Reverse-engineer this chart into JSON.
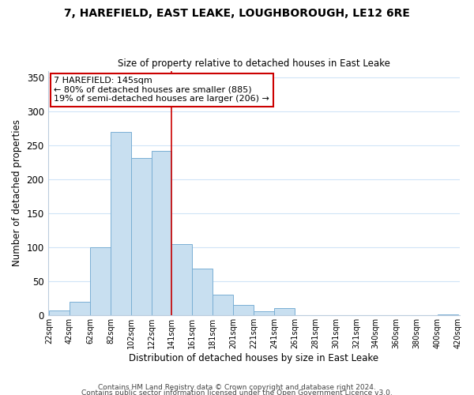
{
  "title1": "7, HAREFIELD, EAST LEAKE, LOUGHBOROUGH, LE12 6RE",
  "title2": "Size of property relative to detached houses in East Leake",
  "xlabel": "Distribution of detached houses by size in East Leake",
  "ylabel": "Number of detached properties",
  "bar_left_edges": [
    22,
    42,
    62,
    82,
    102,
    122,
    141,
    161,
    181,
    201,
    221,
    241,
    261,
    281,
    301,
    321,
    340,
    360,
    380,
    400
  ],
  "bar_widths": [
    20,
    20,
    20,
    20,
    20,
    19,
    20,
    20,
    20,
    20,
    20,
    20,
    20,
    20,
    20,
    19,
    20,
    20,
    20,
    20
  ],
  "bar_heights": [
    7,
    20,
    100,
    270,
    232,
    242,
    105,
    69,
    30,
    16,
    6,
    11,
    0,
    0,
    0,
    0,
    0,
    0,
    0,
    2
  ],
  "bar_color": "#c8dff0",
  "bar_edgecolor": "#7aafd4",
  "vline_x": 141,
  "vline_color": "#cc0000",
  "annotation_title": "7 HAREFIELD: 145sqm",
  "annotation_line1": "← 80% of detached houses are smaller (885)",
  "annotation_line2": "19% of semi-detached houses are larger (206) →",
  "annotation_box_edgecolor": "#cc0000",
  "annotation_box_facecolor": "#ffffff",
  "xtick_labels": [
    "22sqm",
    "42sqm",
    "62sqm",
    "82sqm",
    "102sqm",
    "122sqm",
    "141sqm",
    "161sqm",
    "181sqm",
    "201sqm",
    "221sqm",
    "241sqm",
    "261sqm",
    "281sqm",
    "301sqm",
    "321sqm",
    "340sqm",
    "360sqm",
    "380sqm",
    "400sqm",
    "420sqm"
  ],
  "xtick_positions": [
    22,
    42,
    62,
    82,
    102,
    122,
    141,
    161,
    181,
    201,
    221,
    241,
    261,
    281,
    301,
    321,
    340,
    360,
    380,
    400,
    420
  ],
  "ylim": [
    0,
    360
  ],
  "xlim_min": 22,
  "xlim_max": 422,
  "yticks": [
    0,
    50,
    100,
    150,
    200,
    250,
    300,
    350
  ],
  "grid_color": "#d0e4f7",
  "background_color": "#ffffff",
  "footnote1": "Contains HM Land Registry data © Crown copyright and database right 2024.",
  "footnote2": "Contains public sector information licensed under the Open Government Licence v3.0."
}
